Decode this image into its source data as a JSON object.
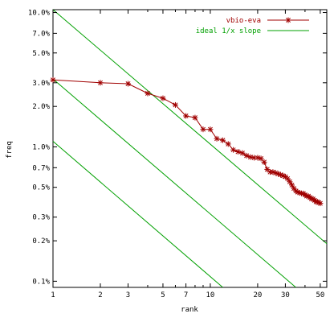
{
  "chart_data": {
    "type": "line",
    "xscale": "log",
    "yscale": "log",
    "xlim": [
      1,
      55
    ],
    "ylim": [
      0.09,
      10.5
    ],
    "xlabel": "rank",
    "ylabel": "freq",
    "grid": false,
    "legend_position": "top-right",
    "x_ticks": [
      {
        "value": 1,
        "label": "1"
      },
      {
        "value": 2,
        "label": "2"
      },
      {
        "value": 3,
        "label": "3"
      },
      {
        "value": 5,
        "label": "5"
      },
      {
        "value": 7,
        "label": "7"
      },
      {
        "value": 10,
        "label": "10"
      },
      {
        "value": 20,
        "label": "20"
      },
      {
        "value": 30,
        "label": "30"
      },
      {
        "value": 50,
        "label": "50"
      }
    ],
    "x_minor_ticks": [
      4,
      6,
      8,
      9,
      40
    ],
    "y_ticks": [
      {
        "value": 0.1,
        "label": "0.1%"
      },
      {
        "value": 0.2,
        "label": "0.2%"
      },
      {
        "value": 0.3,
        "label": "0.3%"
      },
      {
        "value": 0.5,
        "label": "0.5%"
      },
      {
        "value": 0.7,
        "label": "0.7%"
      },
      {
        "value": 1.0,
        "label": "1.0%"
      },
      {
        "value": 2.0,
        "label": "2.0%"
      },
      {
        "value": 3.0,
        "label": "3.0%"
      },
      {
        "value": 5.0,
        "label": "5.0%"
      },
      {
        "value": 7.0,
        "label": "7.0%"
      },
      {
        "value": 10.0,
        "label": "10.0%"
      }
    ],
    "series": [
      {
        "name": "vbio-eva",
        "color": "#a00000",
        "marker": "star",
        "x": [
          1,
          2,
          3,
          4,
          5,
          6,
          7,
          8,
          9,
          10,
          11,
          12,
          13,
          14,
          15,
          16,
          17,
          18,
          19,
          20,
          21,
          22,
          23,
          24,
          25,
          26,
          27,
          28,
          29,
          30,
          31,
          32,
          33,
          34,
          35,
          36,
          37,
          38,
          39,
          40,
          41,
          42,
          43,
          44,
          45,
          46,
          47,
          48,
          49,
          50
        ],
        "y": [
          3.15,
          3.0,
          2.95,
          2.5,
          2.3,
          2.05,
          1.7,
          1.65,
          1.35,
          1.35,
          1.15,
          1.12,
          1.05,
          0.95,
          0.92,
          0.9,
          0.86,
          0.84,
          0.83,
          0.83,
          0.82,
          0.77,
          0.68,
          0.65,
          0.65,
          0.64,
          0.63,
          0.62,
          0.61,
          0.6,
          0.58,
          0.55,
          0.52,
          0.49,
          0.47,
          0.46,
          0.455,
          0.45,
          0.45,
          0.44,
          0.43,
          0.43,
          0.42,
          0.41,
          0.41,
          0.4,
          0.39,
          0.39,
          0.385,
          0.38
        ]
      }
    ],
    "reference_lines": [
      {
        "name": "ideal 1/x slope",
        "color": "#00a000",
        "start": [
          1,
          10.5
        ],
        "end": [
          55,
          0.19
        ]
      },
      {
        "start": [
          1,
          3.2
        ],
        "end": [
          35,
          0.09
        ]
      },
      {
        "start": [
          1,
          1.1
        ],
        "end": [
          12,
          0.09
        ]
      }
    ]
  }
}
